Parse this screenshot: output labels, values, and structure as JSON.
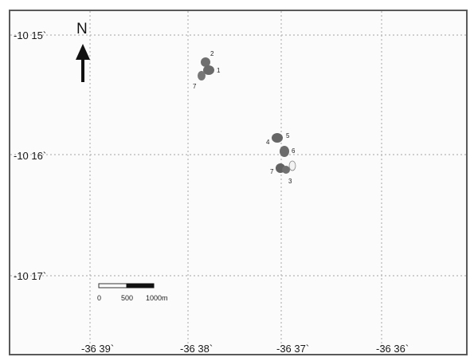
{
  "north_arrow": {
    "label": "N"
  },
  "latitude_ticks": [
    "-10 15`",
    "-10 16`",
    "-10 17`"
  ],
  "longitude_ticks": [
    "-36 39`",
    "-36 38`",
    "-36 37`",
    "-36 36`"
  ],
  "scale_bar": {
    "labels": [
      "0",
      "500",
      "1000m"
    ]
  },
  "site_groups": [
    {
      "name": "group-north",
      "labels": [
        "2",
        "1",
        "7"
      ]
    },
    {
      "name": "group-south",
      "labels": [
        "4",
        "5",
        "6",
        "7",
        "3"
      ]
    }
  ],
  "colors": {
    "frame": "#5a5a5a",
    "grid": "#b5b5b5",
    "site_fill": "#6a6a6a",
    "scale_dark": "#111111"
  }
}
